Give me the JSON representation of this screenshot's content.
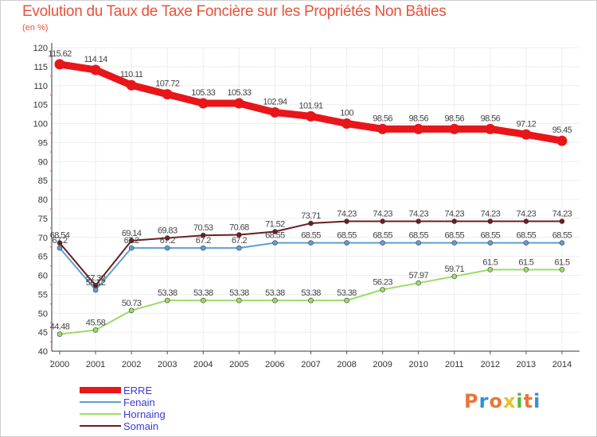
{
  "title": "Evolution du Taux de Taxe Foncière sur les Propriétés Non Bâties",
  "unit_label": "(en %)",
  "logo": {
    "text": "Proxiti",
    "letters": [
      "P",
      "r",
      "o",
      "x",
      "i",
      "t",
      "i"
    ],
    "colors": [
      "#e8763a",
      "#2f8fd8",
      "#e8763a",
      "#e8c02a",
      "#5ab63a",
      "#e8763a",
      "#2f8fd8"
    ]
  },
  "chart_data": {
    "type": "line",
    "title": "Evolution du Taux de Taxe Foncière sur les Propriétés Non Bâties",
    "ylabel": "(en %)",
    "xlabel": "",
    "ylim": [
      40,
      120
    ],
    "yticks": [
      "40",
      "45",
      "50",
      "55",
      "60",
      "65",
      "70",
      "75",
      "80",
      "85",
      "90",
      "95",
      "100",
      "105",
      "110",
      "115",
      "120"
    ],
    "categories": [
      "2000",
      "2001",
      "2002",
      "2003",
      "2004",
      "2005",
      "2006",
      "2007",
      "2008",
      "2009",
      "2010",
      "2011",
      "2012",
      "2013",
      "2014"
    ],
    "grid": true,
    "legend_position": "bottom-left",
    "series": [
      {
        "name": "ERRE",
        "color": "#e8161a",
        "emphasis": "thick",
        "values": [
          115.62,
          114.14,
          110.11,
          107.72,
          105.33,
          105.33,
          102.94,
          101.91,
          100,
          98.56,
          98.56,
          98.56,
          98.56,
          97.12,
          95.45
        ],
        "labels": [
          "115.62",
          "114.14",
          "110.11",
          "107.72",
          "105.33",
          "105.33",
          "102.94",
          "101.91",
          "100",
          "98.56",
          "98.56",
          "98.56",
          "98.56",
          "97.12",
          "95.45"
        ]
      },
      {
        "name": "Fenain",
        "color": "#5e9ed2",
        "emphasis": "normal",
        "values": [
          67.2,
          56.12,
          67.2,
          67.2,
          67.2,
          67.2,
          68.55,
          68.55,
          68.55,
          68.55,
          68.55,
          68.55,
          68.55,
          68.55,
          68.55
        ],
        "labels": [
          "67.2",
          "56.12",
          "67.2",
          "67.2",
          "67.2",
          "67.2",
          "68.55",
          "68.55",
          "68.55",
          "68.55",
          "68.55",
          "68.55",
          "68.55",
          "68.55",
          "68.55"
        ]
      },
      {
        "name": "Hornaing",
        "color": "#9ddb6a",
        "emphasis": "normal",
        "values": [
          44.48,
          45.58,
          50.73,
          53.38,
          53.38,
          53.38,
          53.38,
          53.38,
          53.38,
          56.23,
          57.97,
          59.71,
          61.5,
          61.5,
          61.5
        ],
        "labels": [
          "44.48",
          "45.58",
          "50.73",
          "53.38",
          "53.38",
          "53.38",
          "53.38",
          "53.38",
          "53.38",
          "56.23",
          "57.97",
          "59.71",
          "61.5",
          "61.5",
          "61.5"
        ]
      },
      {
        "name": "Somain",
        "color": "#6b1d22",
        "emphasis": "normal",
        "values": [
          68.54,
          57.32,
          69.14,
          69.83,
          70.53,
          70.68,
          71.52,
          73.71,
          74.23,
          74.23,
          74.23,
          74.23,
          74.23,
          74.23,
          74.23
        ],
        "labels": [
          "68.54",
          "57.32",
          "69.14",
          "69.83",
          "70.53",
          "70.68",
          "71.52",
          "73.71",
          "74.23",
          "74.23",
          "74.23",
          "74.23",
          "74.23",
          "74.23",
          "74.23"
        ]
      }
    ]
  }
}
